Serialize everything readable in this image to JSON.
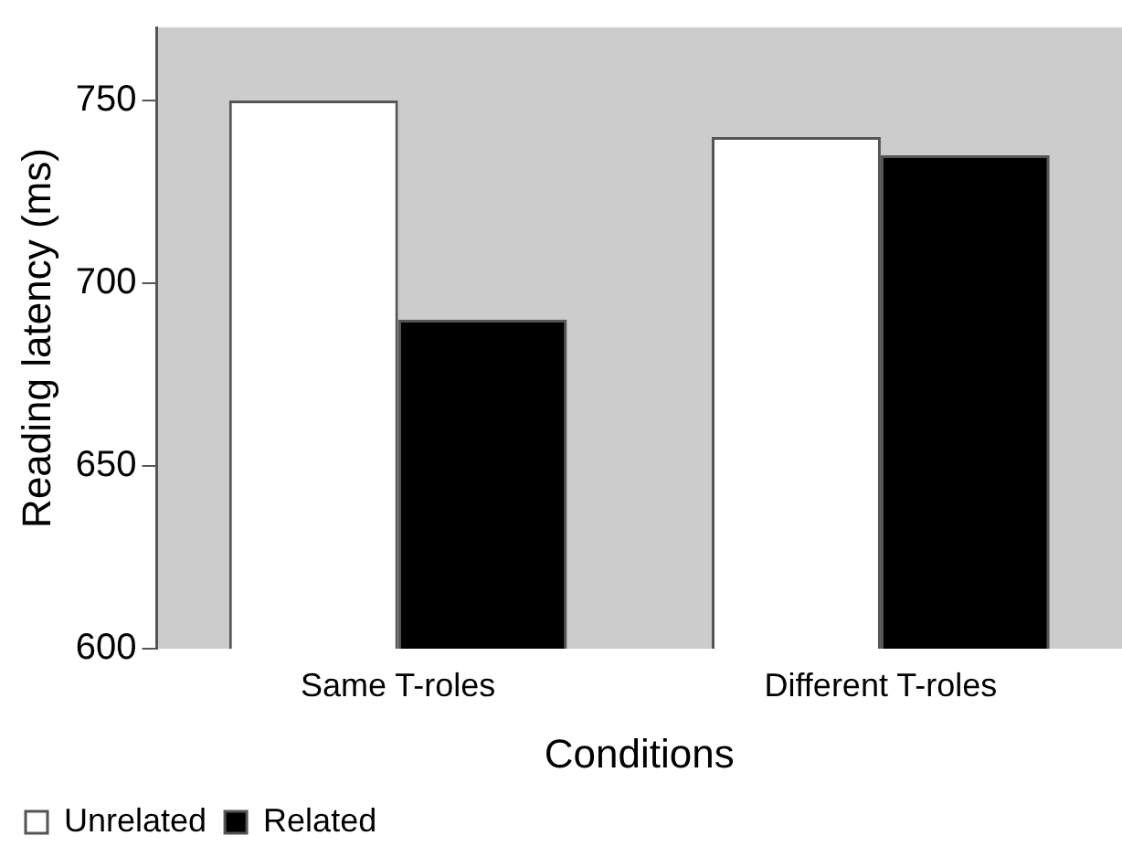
{
  "chart_data": {
    "type": "bar",
    "xlabel": "Conditions",
    "ylabel": "Reading latency (ms)",
    "categories": [
      "Same T-roles",
      "Different T-roles"
    ],
    "series": [
      {
        "name": "Unrelated",
        "color": "#ffffff",
        "values": [
          750,
          740
        ]
      },
      {
        "name": "Related",
        "color": "#000000",
        "values": [
          690,
          735
        ]
      }
    ],
    "ylim": [
      600,
      770
    ],
    "yticks": [
      600,
      650,
      700,
      750
    ],
    "grid": false,
    "legend": "bottom left"
  }
}
